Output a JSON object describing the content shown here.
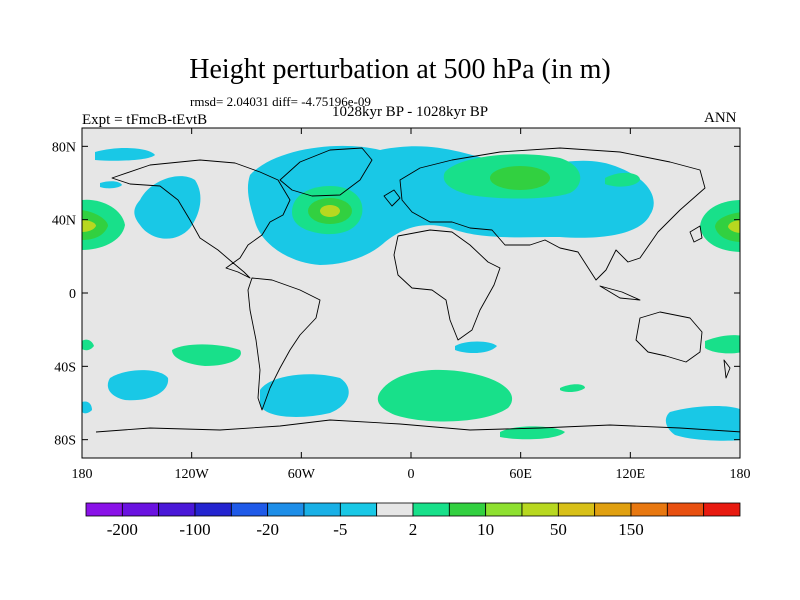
{
  "header": {
    "title": "Height perturbation at 500 hPa (in m)",
    "rmsd_line": "rmsd= 2.04031 diff= -4.75196e-09",
    "period": "1028kyr BP - 1028kyr BP",
    "expt": "Expt = tFmcB-tEvtB",
    "season": "ANN"
  },
  "axes": {
    "lon_ticks": [
      {
        "value": -180,
        "label": "180"
      },
      {
        "value": -120,
        "label": "120W"
      },
      {
        "value": -60,
        "label": "60W"
      },
      {
        "value": 0,
        "label": "0"
      },
      {
        "value": 60,
        "label": "60E"
      },
      {
        "value": 120,
        "label": "120E"
      },
      {
        "value": 180,
        "label": "180"
      }
    ],
    "lat_ticks": [
      {
        "value": 80,
        "label": "80N"
      },
      {
        "value": 40,
        "label": "40N"
      },
      {
        "value": 0,
        "label": "0"
      },
      {
        "value": -40,
        "label": "40S"
      },
      {
        "value": -80,
        "label": "80S"
      }
    ],
    "lon_range": [
      -180,
      180
    ],
    "lat_range": [
      -90,
      90
    ]
  },
  "colorbar": {
    "colors": [
      "#8a12e8",
      "#6a12e0",
      "#4a18d8",
      "#2424d0",
      "#1f5ae8",
      "#1e8ee8",
      "#19b0e6",
      "#19c8e6",
      "#e6e6e6",
      "#18e08a",
      "#32d040",
      "#8ee030",
      "#b8d820",
      "#d8c018",
      "#e0a010",
      "#e87810",
      "#e85010",
      "#e81a10"
    ],
    "labels": [
      {
        "after_box": 1,
        "text": "-200"
      },
      {
        "after_box": 3,
        "text": "-100"
      },
      {
        "after_box": 5,
        "text": "-20"
      },
      {
        "after_box": 7,
        "text": "-5"
      },
      {
        "after_box": 9,
        "text": "2"
      },
      {
        "after_box": 11,
        "text": "10"
      },
      {
        "after_box": 13,
        "text": "50"
      },
      {
        "after_box": 15,
        "text": "150"
      }
    ]
  },
  "colors": {
    "background": "#e6e6e6",
    "neg_light": "#19c8e6",
    "pos_light": "#18e08a",
    "pos_mid": "#32d040",
    "pos_strong": "#b8d820"
  }
}
